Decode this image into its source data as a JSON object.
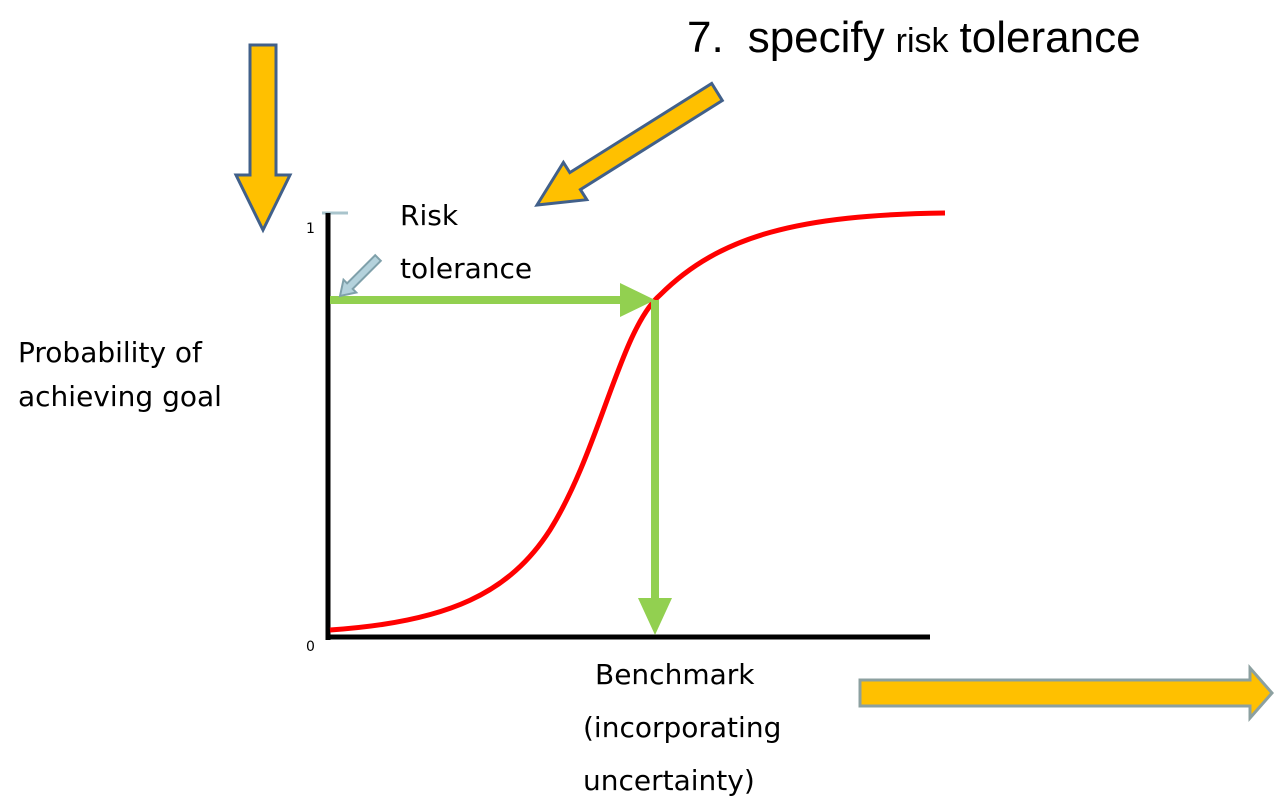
{
  "title": {
    "number": "7.",
    "words": [
      "specify",
      "risk",
      "tolerance"
    ]
  },
  "y_axis": {
    "label": [
      "Probability of",
      "achieving goal"
    ],
    "max_label": "1",
    "min_label": "0"
  },
  "risk_tolerance_label": [
    "Risk",
    "tolerance"
  ],
  "x_axis": {
    "label": [
      "Benchmark",
      "(incorporating",
      "uncertainty)"
    ]
  }
}
